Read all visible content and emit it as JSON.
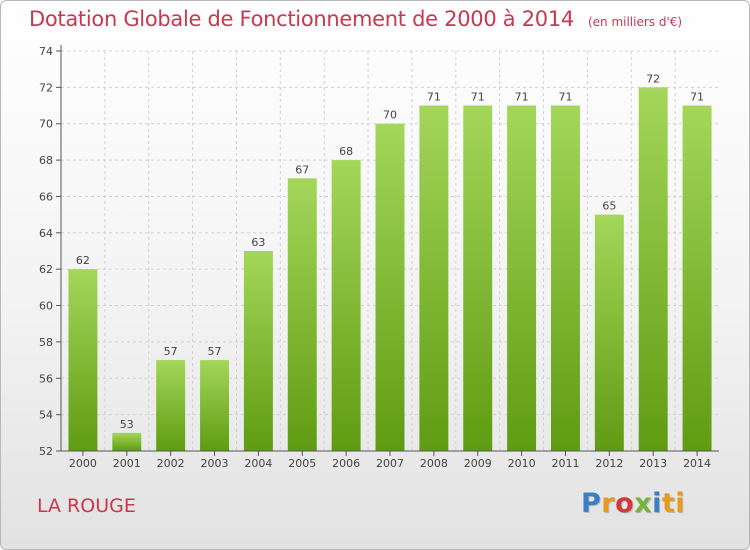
{
  "title": "Dotation Globale de Fonctionnement de 2000 à 2014",
  "subtitle": "(en milliers d'€)",
  "location": "LA ROUGE",
  "logo": [
    "P",
    "r",
    "o",
    "x",
    "i",
    "ti"
  ],
  "colors": {
    "bar_top": "#a4d65a",
    "bar_bottom": "#5f9c12",
    "title": "#c8384f"
  },
  "chart_data": {
    "type": "bar",
    "categories": [
      "2000",
      "2001",
      "2002",
      "2003",
      "2004",
      "2005",
      "2006",
      "2007",
      "2008",
      "2009",
      "2010",
      "2011",
      "2012",
      "2013",
      "2014"
    ],
    "values": [
      62,
      53,
      57,
      57,
      63,
      67,
      68,
      70,
      71,
      71,
      71,
      71,
      65,
      72,
      71
    ],
    "ylim": [
      52,
      74
    ],
    "yticks": [
      52,
      54,
      56,
      58,
      60,
      62,
      64,
      66,
      68,
      70,
      72,
      74
    ],
    "grid": true
  }
}
